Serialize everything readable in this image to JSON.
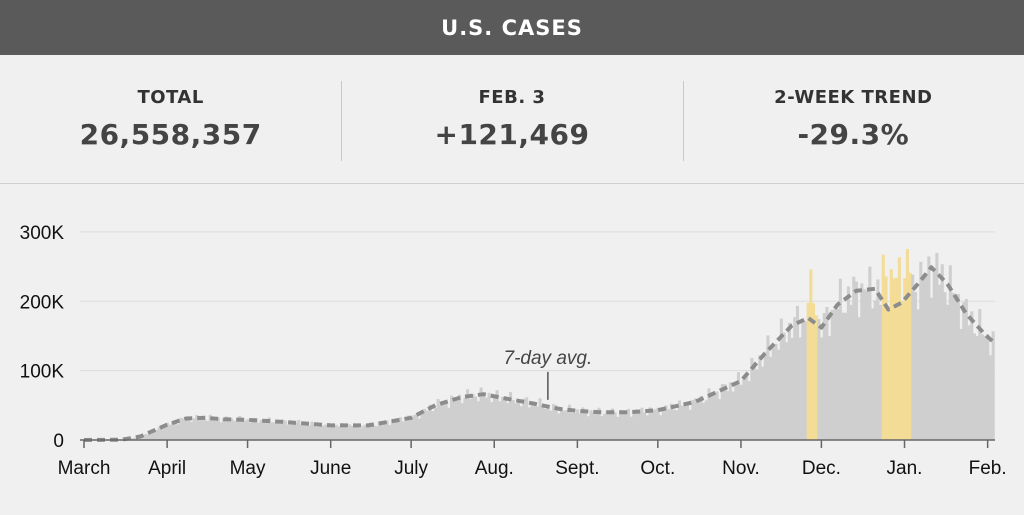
{
  "header": {
    "title": "U.S. CASES"
  },
  "stats": [
    {
      "label": "TOTAL",
      "value": "26,558,357"
    },
    {
      "label": "FEB. 3",
      "value": "+121,469"
    },
    {
      "label": "2-WEEK TREND",
      "value": "-29.3%"
    }
  ],
  "colors": {
    "bar": "#cfcfcf",
    "highlight": "#f2dc96",
    "avg_line": "#8c8c8c",
    "header_bg": "#5a5a5a",
    "grid": "#dcdcdc"
  },
  "chart_data": {
    "type": "bar",
    "y_ticks": [
      {
        "value": 0,
        "label": "0"
      },
      {
        "value": 100000,
        "label": "100K"
      },
      {
        "value": 200000,
        "label": "200K"
      },
      {
        "value": 300000,
        "label": "300K"
      }
    ],
    "ylim": [
      0,
      320000
    ],
    "x_ticks": [
      {
        "date": "2020-03-01",
        "label": "March"
      },
      {
        "date": "2020-04-01",
        "label": "April"
      },
      {
        "date": "2020-05-01",
        "label": "May"
      },
      {
        "date": "2020-06-01",
        "label": "June"
      },
      {
        "date": "2020-07-01",
        "label": "July"
      },
      {
        "date": "2020-08-01",
        "label": "Aug."
      },
      {
        "date": "2020-09-01",
        "label": "Sept."
      },
      {
        "date": "2020-10-01",
        "label": "Oct."
      },
      {
        "date": "2020-11-01",
        "label": "Nov."
      },
      {
        "date": "2020-12-01",
        "label": "Dec."
      },
      {
        "date": "2021-01-01",
        "label": "Jan."
      },
      {
        "date": "2021-02-01",
        "label": "Feb."
      }
    ],
    "x_range": [
      "2020-03-01",
      "2021-02-03"
    ],
    "series": [
      {
        "name": "7-day avg.",
        "kind": "line",
        "points": [
          [
            "2020-03-01",
            0
          ],
          [
            "2020-03-15",
            500
          ],
          [
            "2020-03-22",
            5000
          ],
          [
            "2020-04-01",
            22000
          ],
          [
            "2020-04-08",
            31000
          ],
          [
            "2020-04-15",
            32000
          ],
          [
            "2020-04-22",
            30000
          ],
          [
            "2020-05-01",
            29000
          ],
          [
            "2020-05-15",
            26000
          ],
          [
            "2020-06-01",
            21000
          ],
          [
            "2020-06-15",
            21000
          ],
          [
            "2020-07-01",
            32000
          ],
          [
            "2020-07-10",
            50000
          ],
          [
            "2020-07-20",
            62000
          ],
          [
            "2020-07-28",
            66000
          ],
          [
            "2020-08-05",
            60000
          ],
          [
            "2020-08-15",
            53000
          ],
          [
            "2020-08-25",
            45000
          ],
          [
            "2020-09-01",
            42000
          ],
          [
            "2020-09-10",
            40000
          ],
          [
            "2020-09-20",
            40000
          ],
          [
            "2020-10-01",
            43000
          ],
          [
            "2020-10-15",
            55000
          ],
          [
            "2020-11-01",
            85000
          ],
          [
            "2020-11-10",
            125000
          ],
          [
            "2020-11-20",
            165000
          ],
          [
            "2020-11-26",
            176000
          ],
          [
            "2020-12-01",
            162000
          ],
          [
            "2020-12-07",
            195000
          ],
          [
            "2020-12-14",
            215000
          ],
          [
            "2020-12-21",
            218000
          ],
          [
            "2020-12-26",
            188000
          ],
          [
            "2020-12-31",
            198000
          ],
          [
            "2021-01-06",
            225000
          ],
          [
            "2021-01-11",
            249000
          ],
          [
            "2021-01-17",
            225000
          ],
          [
            "2021-01-24",
            182000
          ],
          [
            "2021-01-31",
            152000
          ],
          [
            "2021-02-03",
            142000
          ]
        ]
      }
    ],
    "annotations": [
      {
        "text": "7-day avg.",
        "date": "2020-08-21",
        "value": 55000
      }
    ],
    "highlights": [
      {
        "from": "2020-11-26",
        "to": "2020-11-29"
      },
      {
        "from": "2020-12-24",
        "to": "2021-01-03"
      }
    ]
  }
}
